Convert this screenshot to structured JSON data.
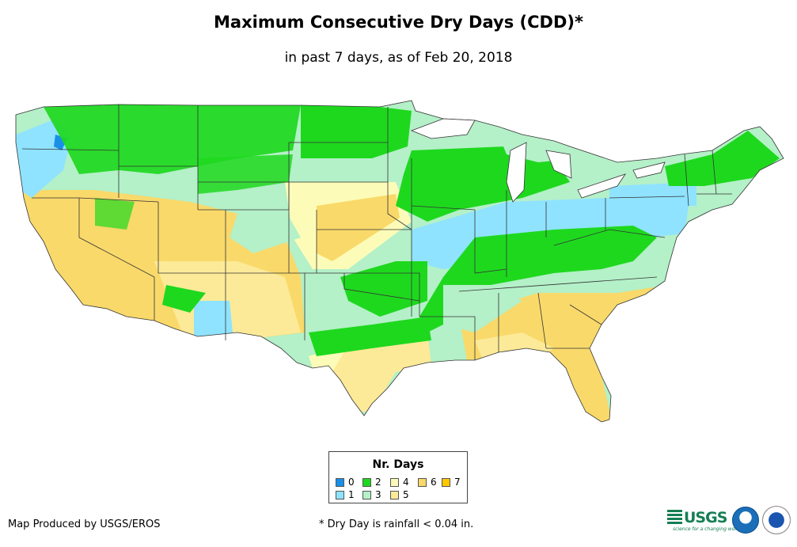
{
  "header": {
    "title": "Maximum Consecutive Dry Days (CDD)*",
    "subtitle": "in past 7 days, as of Feb 20, 2018"
  },
  "legend": {
    "title": "Nr. Days",
    "items": [
      {
        "label": "0",
        "color": "#1a8fe8"
      },
      {
        "label": "1",
        "color": "#8fe3ff"
      },
      {
        "label": "2",
        "color": "#1ed81e"
      },
      {
        "label": "3",
        "color": "#b4f0c8"
      },
      {
        "label": "4",
        "color": "#fcfcb8"
      },
      {
        "label": "5",
        "color": "#fcea98"
      },
      {
        "label": "6",
        "color": "#f9d96a"
      },
      {
        "label": "7",
        "color": "#ffc800"
      }
    ]
  },
  "footer": {
    "credit": "Map Produced by USGS/EROS",
    "footnote": "* Dry Day is rainfall < 0.04 in."
  },
  "logos": {
    "usgs": "USGS",
    "usgs_tagline": "science for a changing world",
    "noaa": "noaa",
    "nws": "NWS"
  }
}
